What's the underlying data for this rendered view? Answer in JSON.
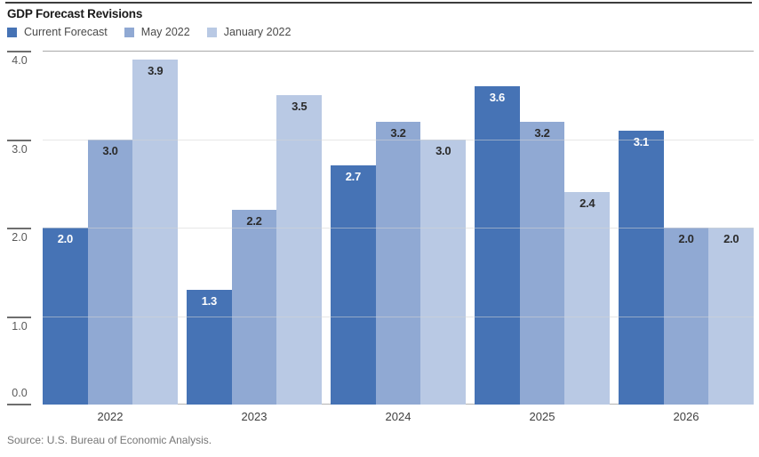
{
  "title": "GDP Forecast Revisions",
  "source": "Source: U.S. Bureau of Economic Analysis.",
  "colors": {
    "top_rule": "#3d3d3d",
    "gridline": "#d4d4d4",
    "top_gridline": "#a9a9a9",
    "baseline": "#b3b3b3",
    "tick_text": "#595959",
    "axis_text": "#3f3f3f",
    "source_text": "#767676"
  },
  "chart_data": {
    "type": "bar",
    "title": "GDP Forecast Revisions",
    "categories": [
      "2022",
      "2023",
      "2024",
      "2025",
      "2026"
    ],
    "series": [
      {
        "name": "Current Forecast",
        "color": "#4673b5",
        "label_color": "#ffffff",
        "values": [
          2.0,
          1.3,
          2.7,
          3.6,
          3.1
        ]
      },
      {
        "name": "May 2022",
        "color": "#90a9d3",
        "label_color": "#2b2b2b",
        "values": [
          3.0,
          2.2,
          3.2,
          3.2,
          2.0
        ]
      },
      {
        "name": "January 2022",
        "color": "#b9c9e4",
        "label_color": "#2b2b2b",
        "values": [
          3.9,
          3.5,
          3.0,
          2.4,
          2.0
        ]
      }
    ],
    "xlabel": "",
    "ylabel": "",
    "ylim": [
      0,
      4
    ],
    "yticks": [
      0.0,
      1.0,
      2.0,
      3.0,
      4.0
    ],
    "grid": true,
    "legend_position": "top",
    "value_labels": "inside-top",
    "label_format_decimals": 1
  }
}
